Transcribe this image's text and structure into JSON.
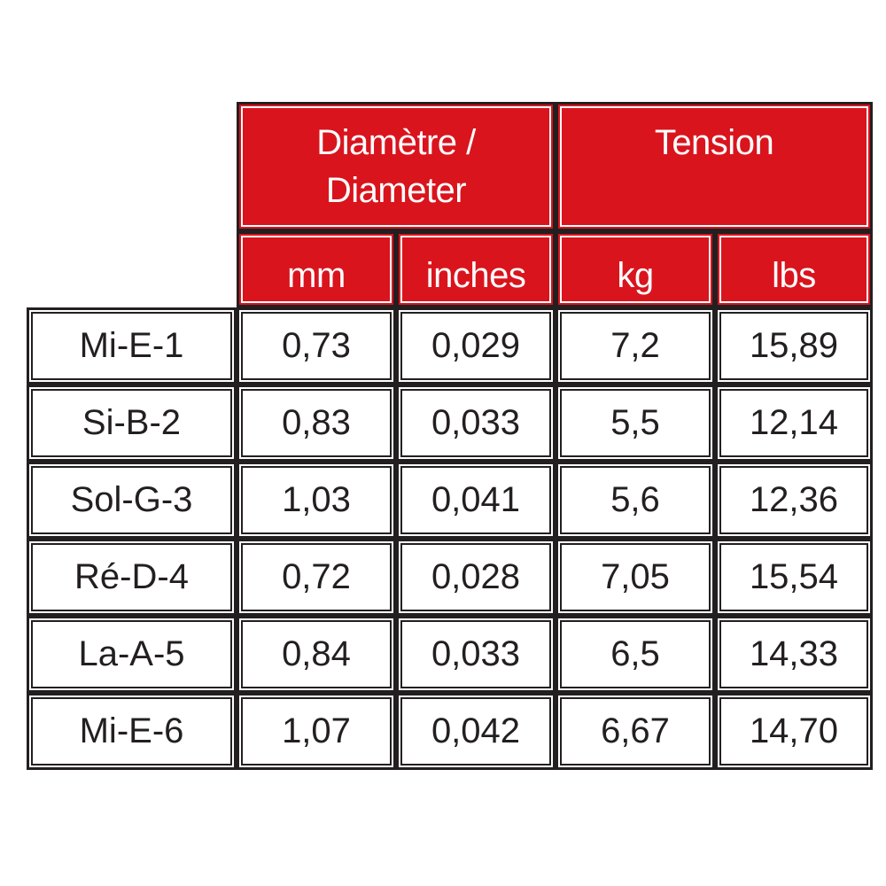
{
  "header": {
    "diameter_label": "Diamètre / Diameter",
    "diameter_line1": "Diamètre /",
    "diameter_line2": "Diameter",
    "tension_label": "Tension",
    "units": [
      "mm",
      "inches",
      "kg",
      "lbs"
    ]
  },
  "rows": [
    {
      "string": "Mi-E-1",
      "mm": "0,73",
      "inches": "0,029",
      "kg": "7,2",
      "lbs": "15,89"
    },
    {
      "string": "Si-B-2",
      "mm": "0,83",
      "inches": "0,033",
      "kg": "5,5",
      "lbs": "12,14"
    },
    {
      "string": "Sol-G-3",
      "mm": "1,03",
      "inches": "0,041",
      "kg": "5,6",
      "lbs": "12,36"
    },
    {
      "string": "Ré-D-4",
      "mm": "0,72",
      "inches": "0,028",
      "kg": "7,05",
      "lbs": "15,54"
    },
    {
      "string": "La-A-5",
      "mm": "0,84",
      "inches": "0,033",
      "kg": "6,5",
      "lbs": "14,33"
    },
    {
      "string": "Mi-E-6",
      "mm": "1,07",
      "inches": "0,042",
      "kg": "6,67",
      "lbs": "14,70"
    }
  ],
  "colors": {
    "header_red": "#d9141d",
    "border": "#231f20",
    "header_text": "#ffffff"
  }
}
